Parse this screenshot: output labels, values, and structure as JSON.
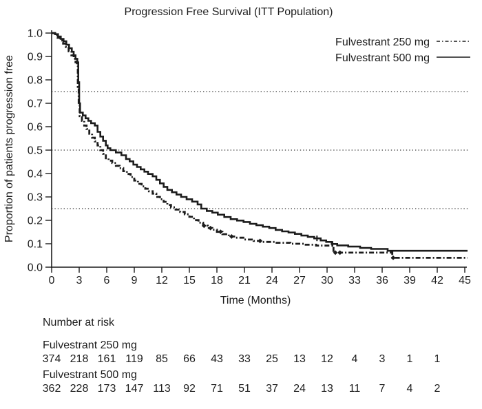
{
  "chart_data": {
    "type": "line",
    "subtype": "kaplan-meier-step-plot",
    "title": "Progression Free Survival (ITT Population)",
    "xlabel": "Time (Months)",
    "ylabel": "Proportion of patients progression free",
    "xlim": [
      0,
      45
    ],
    "ylim": [
      0.0,
      1.0
    ],
    "xticks": [
      0,
      3,
      6,
      9,
      12,
      15,
      18,
      21,
      24,
      27,
      30,
      33,
      36,
      39,
      42,
      45
    ],
    "yticks": [
      0.0,
      0.1,
      0.2,
      0.3,
      0.4,
      0.5,
      0.6,
      0.7,
      0.8,
      0.9,
      1.0
    ],
    "grid": "off",
    "reference_lines": {
      "style": "dotted",
      "y_values": [
        0.25,
        0.5,
        0.75
      ]
    },
    "legend": {
      "position": "top-right",
      "entries": [
        {
          "label": "Fulvestrant 250 mg",
          "line_style": "dash-dot"
        },
        {
          "label": "Fulvestrant 500 mg",
          "line_style": "solid"
        }
      ]
    },
    "series": [
      {
        "name": "Fulvestrant 250 mg",
        "line_style": "dash-dot",
        "color": "#1c1c1c",
        "step_points": [
          [
            0,
            1.0
          ],
          [
            0.35,
            0.99
          ],
          [
            0.65,
            0.98
          ],
          [
            0.95,
            0.968
          ],
          [
            1.25,
            0.955
          ],
          [
            1.55,
            0.94
          ],
          [
            1.85,
            0.922
          ],
          [
            2.15,
            0.905
          ],
          [
            2.4,
            0.89
          ],
          [
            2.6,
            0.875
          ],
          [
            2.75,
            0.86
          ],
          [
            2.85,
            0.77
          ],
          [
            2.95,
            0.69
          ],
          [
            3.05,
            0.645
          ],
          [
            3.3,
            0.625
          ],
          [
            3.55,
            0.605
          ],
          [
            3.8,
            0.59
          ],
          [
            4.1,
            0.57
          ],
          [
            4.4,
            0.553
          ],
          [
            4.7,
            0.537
          ],
          [
            5.0,
            0.52
          ],
          [
            5.3,
            0.5
          ],
          [
            5.6,
            0.484
          ],
          [
            5.9,
            0.465
          ],
          [
            6.2,
            0.455
          ],
          [
            6.6,
            0.445
          ],
          [
            7.0,
            0.433
          ],
          [
            7.4,
            0.423
          ],
          [
            7.8,
            0.41
          ],
          [
            8.2,
            0.398
          ],
          [
            8.6,
            0.385
          ],
          [
            9.0,
            0.37
          ],
          [
            9.4,
            0.356
          ],
          [
            9.8,
            0.345
          ],
          [
            10.2,
            0.335
          ],
          [
            10.6,
            0.324
          ],
          [
            11.0,
            0.314
          ],
          [
            11.4,
            0.3
          ],
          [
            11.8,
            0.29
          ],
          [
            12.2,
            0.279
          ],
          [
            12.6,
            0.266
          ],
          [
            13.0,
            0.256
          ],
          [
            13.5,
            0.246
          ],
          [
            14.0,
            0.236
          ],
          [
            14.5,
            0.226
          ],
          [
            15.0,
            0.215
          ],
          [
            15.5,
            0.201
          ],
          [
            16.0,
            0.19
          ],
          [
            16.5,
            0.177
          ],
          [
            17.0,
            0.167
          ],
          [
            17.5,
            0.16
          ],
          [
            18.0,
            0.151
          ],
          [
            18.6,
            0.141
          ],
          [
            19.3,
            0.131
          ],
          [
            20.0,
            0.126
          ],
          [
            21.0,
            0.118
          ],
          [
            22.0,
            0.112
          ],
          [
            23.0,
            0.108
          ],
          [
            24.5,
            0.104
          ],
          [
            26.0,
            0.1
          ],
          [
            27.5,
            0.096
          ],
          [
            28.8,
            0.092
          ],
          [
            30.7,
            0.062
          ],
          [
            37.1,
            0.04
          ],
          [
            45.3,
            0.04
          ]
        ],
        "censor_times": [
          16.6,
          17.3,
          18.4,
          19.6,
          22.7,
          30.9,
          31.4,
          37.2
        ]
      },
      {
        "name": "Fulvestrant 500 mg",
        "line_style": "solid",
        "color": "#1c1c1c",
        "step_points": [
          [
            0,
            1.0
          ],
          [
            0.4,
            0.995
          ],
          [
            0.7,
            0.985
          ],
          [
            1.0,
            0.975
          ],
          [
            1.3,
            0.965
          ],
          [
            1.6,
            0.95
          ],
          [
            1.9,
            0.935
          ],
          [
            2.2,
            0.92
          ],
          [
            2.4,
            0.905
          ],
          [
            2.6,
            0.89
          ],
          [
            2.8,
            0.875
          ],
          [
            2.9,
            0.79
          ],
          [
            3.0,
            0.7
          ],
          [
            3.1,
            0.66
          ],
          [
            3.4,
            0.648
          ],
          [
            3.7,
            0.636
          ],
          [
            4.0,
            0.625
          ],
          [
            4.3,
            0.615
          ],
          [
            4.7,
            0.605
          ],
          [
            5.0,
            0.578
          ],
          [
            5.3,
            0.558
          ],
          [
            5.6,
            0.54
          ],
          [
            5.9,
            0.52
          ],
          [
            6.1,
            0.508
          ],
          [
            6.4,
            0.5
          ],
          [
            7.0,
            0.49
          ],
          [
            7.6,
            0.478
          ],
          [
            8.1,
            0.462
          ],
          [
            8.5,
            0.452
          ],
          [
            8.9,
            0.438
          ],
          [
            9.3,
            0.428
          ],
          [
            9.7,
            0.418
          ],
          [
            10.1,
            0.408
          ],
          [
            10.5,
            0.398
          ],
          [
            11.0,
            0.388
          ],
          [
            11.4,
            0.373
          ],
          [
            11.8,
            0.358
          ],
          [
            12.2,
            0.343
          ],
          [
            12.6,
            0.33
          ],
          [
            13.1,
            0.32
          ],
          [
            13.6,
            0.31
          ],
          [
            14.1,
            0.3
          ],
          [
            14.7,
            0.29
          ],
          [
            15.3,
            0.28
          ],
          [
            15.9,
            0.268
          ],
          [
            16.3,
            0.25
          ],
          [
            16.9,
            0.24
          ],
          [
            17.5,
            0.233
          ],
          [
            18.1,
            0.224
          ],
          [
            18.8,
            0.214
          ],
          [
            19.5,
            0.205
          ],
          [
            20.2,
            0.199
          ],
          [
            20.9,
            0.193
          ],
          [
            21.6,
            0.185
          ],
          [
            22.3,
            0.179
          ],
          [
            23.0,
            0.173
          ],
          [
            23.7,
            0.167
          ],
          [
            24.4,
            0.159
          ],
          [
            25.1,
            0.153
          ],
          [
            25.8,
            0.148
          ],
          [
            26.5,
            0.142
          ],
          [
            27.2,
            0.135
          ],
          [
            27.9,
            0.129
          ],
          [
            28.6,
            0.123
          ],
          [
            29.3,
            0.114
          ],
          [
            29.9,
            0.108
          ],
          [
            30.5,
            0.099
          ],
          [
            31.1,
            0.093
          ],
          [
            32.3,
            0.088
          ],
          [
            33.6,
            0.082
          ],
          [
            34.8,
            0.078
          ],
          [
            36.6,
            0.07
          ],
          [
            45.3,
            0.07
          ]
        ],
        "censor_times": [
          28.9,
          30.6
        ]
      }
    ],
    "number_at_risk": {
      "heading": "Number at risk",
      "times": [
        0,
        3,
        6,
        9,
        12,
        15,
        18,
        21,
        24,
        27,
        30,
        33,
        36,
        39,
        42
      ],
      "groups": [
        {
          "name": "Fulvestrant 250 mg",
          "counts": [
            374,
            218,
            161,
            119,
            85,
            66,
            43,
            33,
            25,
            13,
            12,
            4,
            3,
            1,
            1
          ]
        },
        {
          "name": "Fulvestrant 500 mg",
          "counts": [
            362,
            228,
            173,
            147,
            113,
            92,
            71,
            51,
            37,
            24,
            13,
            11,
            7,
            4,
            2
          ]
        }
      ]
    },
    "colors": {
      "ink": "#1c1c1c",
      "background": "#ffffff"
    }
  }
}
